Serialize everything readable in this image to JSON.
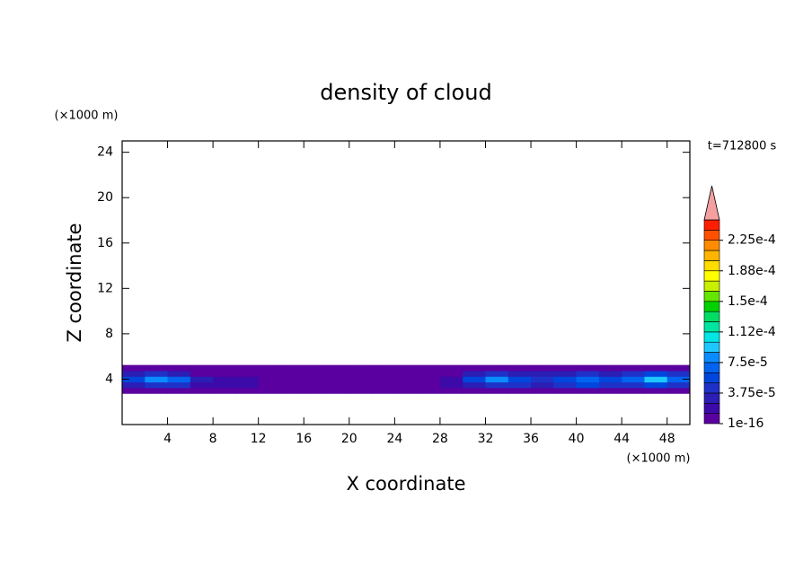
{
  "chart_data": {
    "type": "contour",
    "title": "density of cloud",
    "x_label": "X coordinate",
    "y_label": "Z coordinate",
    "x_unit": "(×1000 m)",
    "y_unit": "(×1000 m)",
    "time_label": "t=712800 s",
    "xlim": [
      0,
      50
    ],
    "ylim": [
      0,
      25
    ],
    "xticks": [
      4,
      8,
      12,
      16,
      20,
      24,
      28,
      32,
      36,
      40,
      44,
      48
    ],
    "yticks": [
      4,
      8,
      12,
      16,
      20,
      24
    ],
    "x": [
      1,
      3,
      5,
      7,
      9,
      11,
      13,
      15,
      17,
      19,
      21,
      23,
      25,
      27,
      29,
      31,
      33,
      35,
      37,
      39,
      41,
      43,
      45,
      47,
      49
    ],
    "z": [
      3,
      3.5,
      4,
      4.5,
      5
    ],
    "values": [
      [
        1e-05,
        1e-05,
        1e-05,
        1e-05,
        1e-05,
        1e-05,
        1e-05,
        1e-05,
        1e-05,
        1e-05,
        1e-05,
        1e-05,
        1e-05,
        1e-05,
        1e-05,
        1e-05,
        1e-05,
        1e-05,
        1e-05,
        1e-05,
        1e-05,
        1e-05,
        1e-05,
        1e-05,
        1e-05
      ],
      [
        3e-05,
        4.5e-05,
        4.5e-05,
        2e-05,
        2e-05,
        2e-05,
        1e-05,
        1e-05,
        1e-05,
        1e-05,
        1e-05,
        1e-05,
        1e-05,
        1e-05,
        2e-05,
        3e-05,
        4.5e-05,
        4.5e-05,
        3e-05,
        4.5e-05,
        5.5e-05,
        4.5e-05,
        4.5e-05,
        5.5e-05,
        4.5e-05
      ],
      [
        5.5e-05,
        8e-05,
        7e-05,
        3e-05,
        2e-05,
        2e-05,
        1e-05,
        1e-05,
        1e-05,
        1e-05,
        1e-05,
        1e-05,
        1e-05,
        1e-05,
        2e-05,
        5.5e-05,
        8e-05,
        5.5e-05,
        4.5e-05,
        5.5e-05,
        7e-05,
        5.5e-05,
        7e-05,
        9e-05,
        7e-05
      ],
      [
        3e-05,
        4.5e-05,
        3e-05,
        1e-05,
        1e-05,
        1e-05,
        1e-05,
        1e-05,
        1e-05,
        1e-05,
        1e-05,
        1e-05,
        1e-05,
        1e-05,
        1e-05,
        3e-05,
        4.5e-05,
        3e-05,
        3e-05,
        3e-05,
        4.5e-05,
        3e-05,
        4.5e-05,
        5.5e-05,
        4.5e-05
      ],
      [
        1e-05,
        1e-05,
        1e-05,
        1e-05,
        1e-05,
        1e-05,
        1e-05,
        1e-05,
        1e-05,
        1e-05,
        1e-05,
        1e-05,
        1e-05,
        1e-05,
        1e-05,
        1e-05,
        1e-05,
        1e-05,
        1e-05,
        1e-05,
        1e-05,
        1e-05,
        1e-05,
        1e-05,
        1e-05
      ]
    ],
    "colorbar": {
      "levels": [
        1e-16,
        1.25e-05,
        2.5e-05,
        3.75e-05,
        5e-05,
        6.25e-05,
        7.5e-05,
        8.75e-05,
        0.0001,
        0.0001125,
        0.000125,
        0.0001375,
        0.00015,
        0.0001625,
        0.000175,
        0.0001875,
        0.0002,
        0.0002125,
        0.000225,
        0.0002375,
        0.00025
      ],
      "colors": [
        "#5a00a0",
        "#3c0aa8",
        "#2a1eb4",
        "#1e32c8",
        "#0046dc",
        "#0064f0",
        "#0a8cff",
        "#1ec8ff",
        "#00e6e6",
        "#00e6a0",
        "#00dc64",
        "#00d200",
        "#64e600",
        "#c8f000",
        "#ffff00",
        "#ffdc00",
        "#ffb400",
        "#ff8c00",
        "#ff5000",
        "#ff1e00"
      ],
      "extend_color": "#f4a0a0",
      "ticks": [
        {
          "value": 1e-16,
          "label": "1e-16"
        },
        {
          "value": 3.75e-05,
          "label": "3.75e-5"
        },
        {
          "value": 7.5e-05,
          "label": "7.5e-5"
        },
        {
          "value": 0.0001125,
          "label": "1.12e-4"
        },
        {
          "value": 0.00015,
          "label": "1.5e-4"
        },
        {
          "value": 0.0001875,
          "label": "1.88e-4"
        },
        {
          "value": 0.000225,
          "label": "2.25e-4"
        }
      ]
    }
  }
}
